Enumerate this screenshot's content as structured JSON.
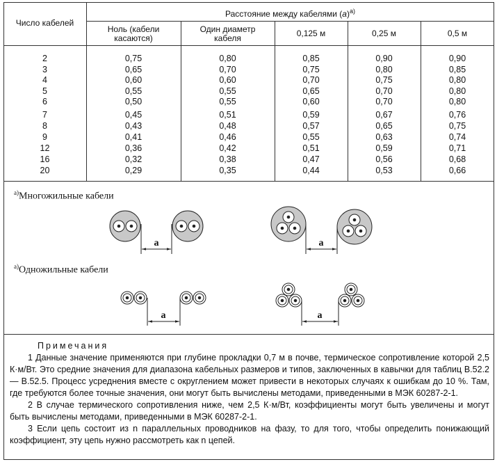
{
  "table": {
    "corner": "Число кабелей",
    "group_prefix": "Расстояние между кабелями (",
    "group_var": "a",
    "group_suffix": ")",
    "group_note": "а)",
    "columns": [
      "Ноль (кабели касаются)",
      "Один диаметр кабеля",
      "0,125 м",
      "0,25 м",
      "0,5 м"
    ],
    "row_groups": [
      [
        [
          "2",
          "0,75",
          "0,80",
          "0,85",
          "0,90",
          "0,90"
        ],
        [
          "3",
          "0,65",
          "0,70",
          "0,75",
          "0,80",
          "0,85"
        ],
        [
          "4",
          "0,60",
          "0,60",
          "0,70",
          "0,75",
          "0,80"
        ],
        [
          "5",
          "0,55",
          "0,55",
          "0,65",
          "0,70",
          "0,80"
        ],
        [
          "6",
          "0,50",
          "0,55",
          "0,60",
          "0,70",
          "0,80"
        ]
      ],
      [
        [
          "7",
          "0,45",
          "0,51",
          "0,59",
          "0,67",
          "0,76"
        ],
        [
          "8",
          "0,43",
          "0,48",
          "0,57",
          "0,65",
          "0,75"
        ],
        [
          "9",
          "0,41",
          "0,46",
          "0,55",
          "0,63",
          "0,74"
        ],
        [
          "12",
          "0,36",
          "0,42",
          "0,51",
          "0,59",
          "0,71"
        ],
        [
          "16",
          "0,32",
          "0,38",
          "0,47",
          "0,56",
          "0,68"
        ],
        [
          "20",
          "0,29",
          "0,35",
          "0,44",
          "0,53",
          "0,66"
        ]
      ]
    ]
  },
  "diagrams": {
    "note_mark": "а)",
    "multi_label": "Многожильные кабели",
    "single_label": "Одножильные кабели",
    "distance": "a"
  },
  "notes": {
    "heading": "Примечания",
    "items": [
      "1 Данные значение применяются при глубине прокладки 0,7 м в почве, термическое сопротивление которой 2,5 К·м/Вт. Это средние значения для диапазона кабельных размеров и типов, заключенных в кавычки для таблиц В.52.2 — В.52.5. Процесс усреднения вместе с округлением может привести в некоторых случаях к ошибкам до 10 %. Там, где требуются более точные значения, они могут быть вычислены методами, приведенными в МЭК 60287-2-1.",
      "2 В случае термического сопротивления ниже, чем 2,5 К·м/Вт, коэффициенты могут быть увеличены и могут быть вычислены методами, приведенными в МЭК 60287-2-1.",
      "3 Если цепь состоит из n параллельных проводников на фазу, то для того, чтобы определить понижающий коэффициент, эту цепь нужно рассмотреть как n цепей."
    ]
  }
}
